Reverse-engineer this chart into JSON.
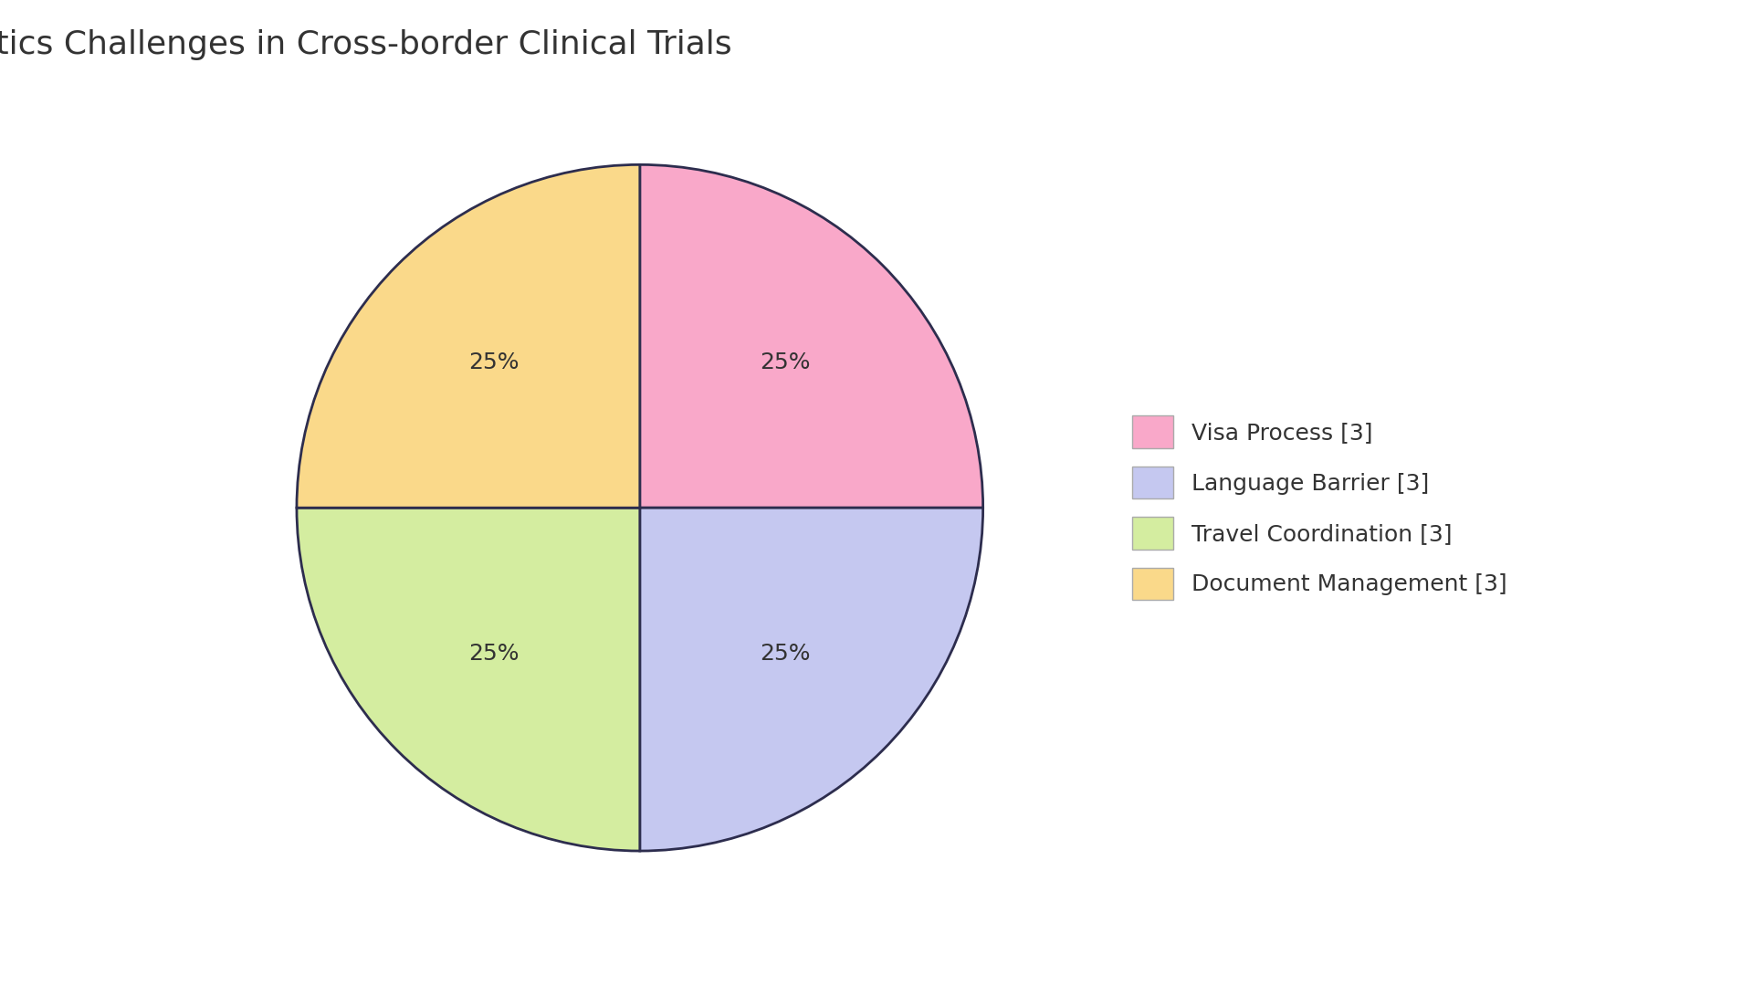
{
  "title": "Logistics Challenges in Cross-border Clinical Trials",
  "labels": [
    "Visa Process [3]",
    "Language Barrier [3]",
    "Travel Coordination [3]",
    "Document Management [3]"
  ],
  "values": [
    25,
    25,
    25,
    25
  ],
  "colors_pie": [
    "#F9A8C9",
    "#C5C8F0",
    "#D4EDA0",
    "#FAD98A"
  ],
  "colors_legend": [
    "#F9A8C9",
    "#C5C8F0",
    "#D4EDA0",
    "#FAD98A"
  ],
  "edge_color": "#2D2D4E",
  "edge_width": 2.0,
  "text_color": "#333333",
  "background_color": "#FFFFFF",
  "title_fontsize": 26,
  "autopct_fontsize": 18,
  "legend_fontsize": 18,
  "startangle": 0
}
